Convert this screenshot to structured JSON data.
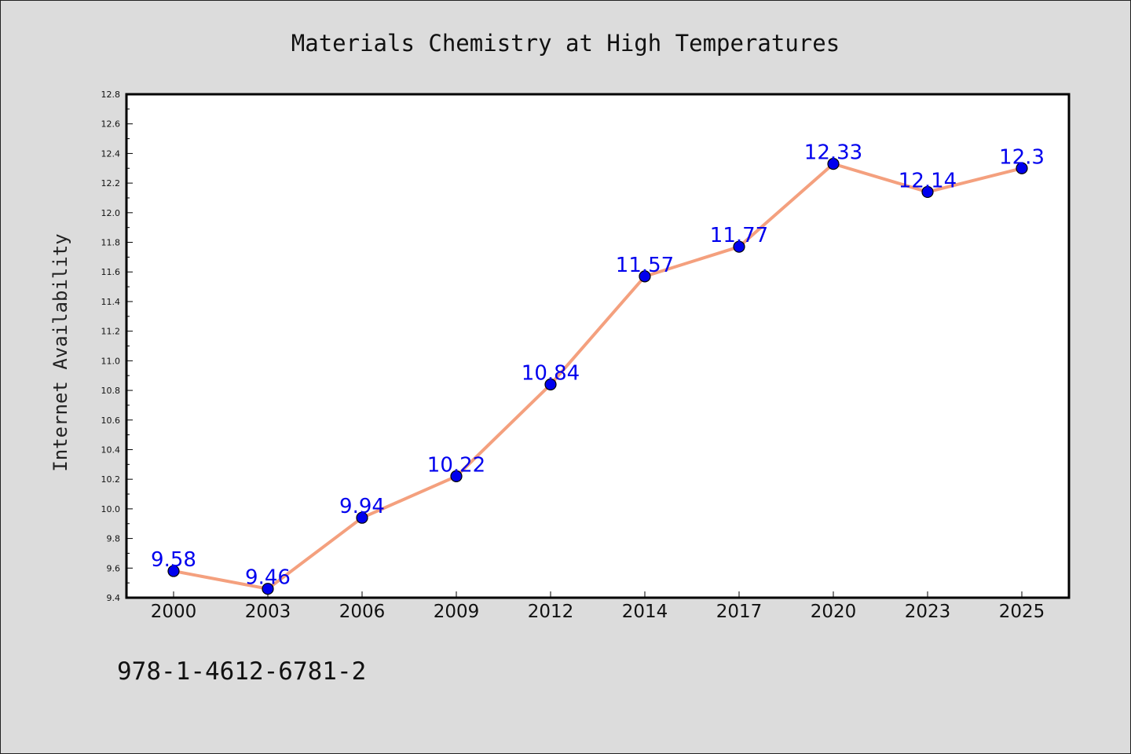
{
  "chart_data": {
    "type": "line",
    "title": "Materials Chemistry at High Temperatures",
    "xlabel": "",
    "ylabel": "Internet Availability",
    "categories": [
      "2000",
      "2003",
      "2006",
      "2009",
      "2012",
      "2014",
      "2017",
      "2020",
      "2023",
      "2025"
    ],
    "series": [
      {
        "values": [
          9.58,
          9.46,
          9.94,
          10.22,
          10.84,
          11.57,
          11.77,
          12.33,
          12.14,
          12.3
        ],
        "data_labels": [
          "9.58",
          "9.46",
          "9.94",
          "10.22",
          "10.84",
          "11.57",
          "11.77",
          "12.33",
          "12.14",
          "12.3"
        ],
        "line_color": "#f4a07e",
        "marker_color": "#0000ee"
      }
    ],
    "ylim": [
      9.4,
      12.8
    ],
    "yticks": [
      "9.4",
      "9.6",
      "9.8",
      "10.0",
      "10.2",
      "10.4",
      "10.6",
      "10.8",
      "11.0",
      "11.2",
      "11.4",
      "11.6",
      "11.8",
      "12.0",
      "12.2",
      "12.4",
      "12.6",
      "12.8"
    ],
    "grid": false,
    "legend": "none",
    "colors": {
      "background": "#dcdcdc",
      "plot_background": "#ffffff",
      "label_color": "#0000ee"
    }
  },
  "footer_text": "978-1-4612-6781-2"
}
